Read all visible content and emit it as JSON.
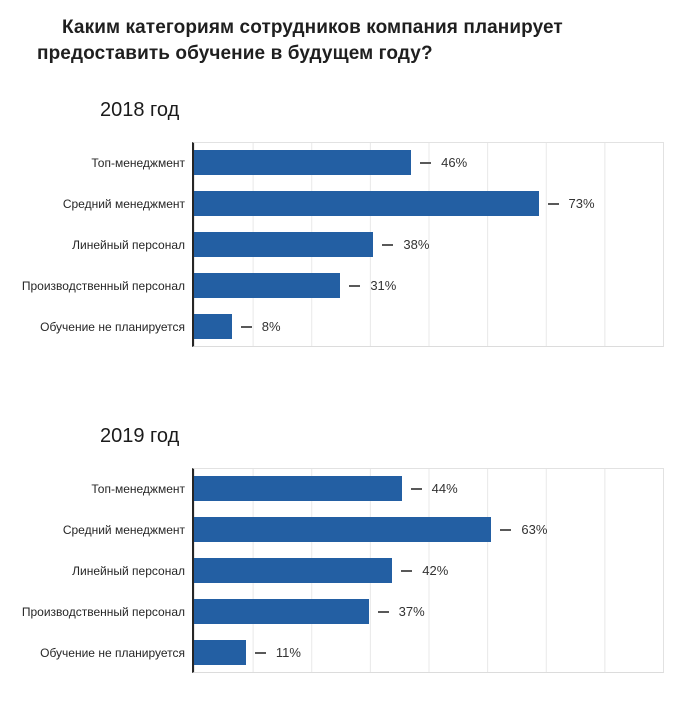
{
  "title": {
    "full": "Каким категориям сотрудников компания планирует предоставить обучение в будущем году?",
    "line1": "Каким категориям сотрудников компания планирует",
    "line2": "предоставить обучение в будущем году?"
  },
  "colors": {
    "bar": "#235fa3",
    "axis": "#262626",
    "gridline": "#e8e8e8",
    "dash": "#595959",
    "title_text": "#1f1f1f",
    "label_text": "#262626",
    "value_text": "#333333",
    "background": "#ffffff"
  },
  "chart_data": [
    {
      "type": "bar",
      "orientation": "horizontal",
      "title": "2018 год",
      "categories": [
        "Топ-менеджмент",
        "Средний менеджмент",
        "Линейный персонал",
        "Производственный персонал",
        "Обучение не планируется"
      ],
      "values": [
        46,
        73,
        38,
        31,
        8
      ],
      "value_labels": [
        "46%",
        "73%",
        "38%",
        "31%",
        "8%"
      ],
      "xlabel": "",
      "ylabel": "",
      "xlim": [
        0,
        100
      ],
      "grid": "vertical gridlines every 12.5%, no tick labels",
      "legend": "none"
    },
    {
      "type": "bar",
      "orientation": "horizontal",
      "title": "2019 год",
      "categories": [
        "Топ-менеджмент",
        "Средний менеджмент",
        "Линейный персонал",
        "Производственный персонал",
        "Обучение не планируется"
      ],
      "values": [
        44,
        63,
        42,
        37,
        11
      ],
      "value_labels": [
        "44%",
        "63%",
        "42%",
        "37%",
        "11%"
      ],
      "xlabel": "",
      "ylabel": "",
      "xlim": [
        0,
        100
      ],
      "grid": "vertical gridlines every 12.5%, no tick labels",
      "legend": "none"
    }
  ]
}
